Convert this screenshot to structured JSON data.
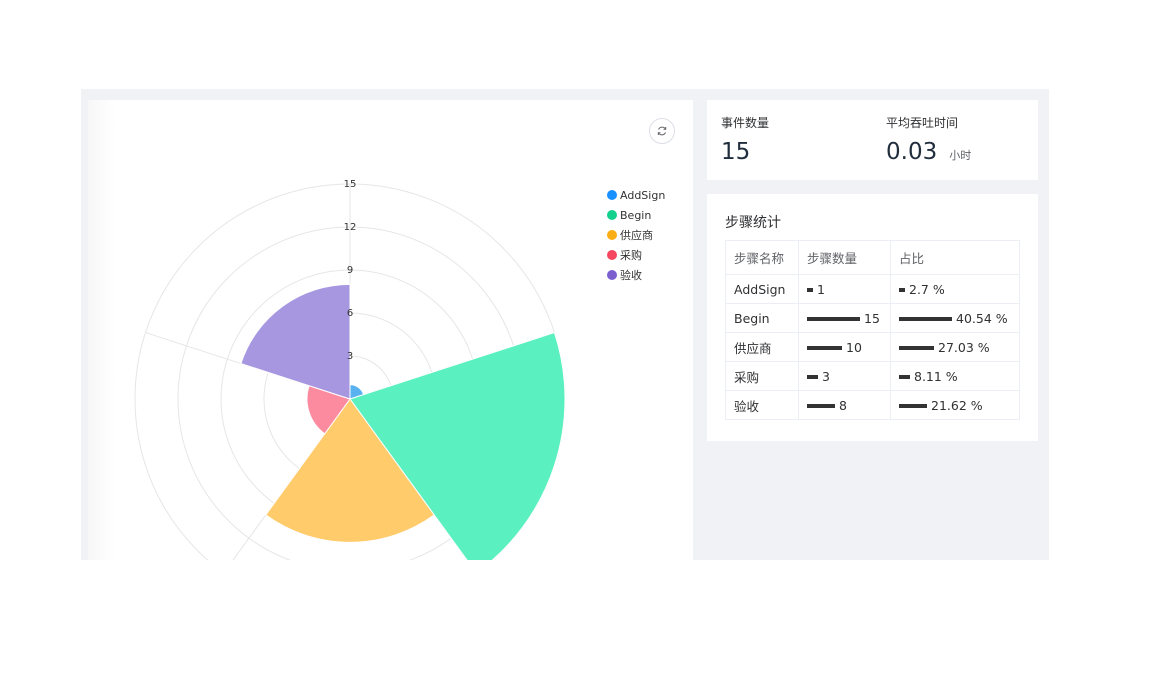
{
  "stats": {
    "event_count_label": "事件数量",
    "event_count_value": "15",
    "avg_throughput_label": "平均吞吐时间",
    "avg_throughput_value": "0.03",
    "avg_throughput_unit": "小时"
  },
  "step_table": {
    "title": "步骤统计",
    "headers": [
      "步骤名称",
      "步骤数量",
      "占比"
    ],
    "rows": [
      {
        "name": "AddSign",
        "count": "1",
        "ratio": "2.7 %",
        "ratio_value": 2.7
      },
      {
        "name": "Begin",
        "count": "15",
        "ratio": "40.54 %",
        "ratio_value": 40.54
      },
      {
        "name": "供应商",
        "count": "10",
        "ratio": "27.03 %",
        "ratio_value": 27.03
      },
      {
        "name": "采购",
        "count": "3",
        "ratio": "8.11 %",
        "ratio_value": 8.11
      },
      {
        "name": "验收",
        "count": "8",
        "ratio": "21.62 %",
        "ratio_value": 21.62
      }
    ]
  },
  "chart_data": {
    "type": "polar-bar",
    "categories": [
      "AddSign",
      "Begin",
      "供应商",
      "采购",
      "验收"
    ],
    "values": [
      1,
      15,
      10,
      3,
      8
    ],
    "colors": [
      "#5ab1ef",
      "#5bf0bf",
      "#ffcb6b",
      "#fc8ba0",
      "#a797e1"
    ],
    "legend_colors": [
      "#1890ff",
      "#13d18c",
      "#faad14",
      "#f5475f",
      "#7b5fcf"
    ],
    "radial_ticks": [
      "3",
      "6",
      "9",
      "12",
      "15"
    ],
    "rmax": 15,
    "legend_position": "top-right"
  }
}
